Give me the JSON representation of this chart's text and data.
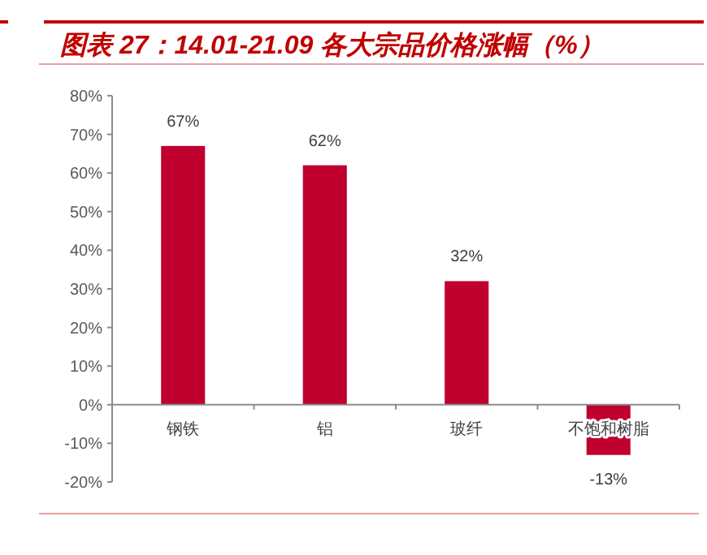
{
  "chart_data": {
    "type": "bar",
    "title": "图表 27：14.01-21.09 各大宗品价格涨幅（%）",
    "categories": [
      "钢铁",
      "铝",
      "玻纤",
      "不饱和树脂"
    ],
    "values": [
      67,
      62,
      32,
      -13
    ],
    "value_labels": [
      "67%",
      "62%",
      "32%",
      "-13%"
    ],
    "color": "#c0002f",
    "ylim": [
      -20,
      80
    ],
    "yticks": [
      {
        "value": -20,
        "label": "-20%"
      },
      {
        "value": -10,
        "label": "-10%"
      },
      {
        "value": 0,
        "label": "0%"
      },
      {
        "value": 10,
        "label": "10%"
      },
      {
        "value": 20,
        "label": "20%"
      },
      {
        "value": 30,
        "label": "30%"
      },
      {
        "value": 40,
        "label": "40%"
      },
      {
        "value": 50,
        "label": "50%"
      },
      {
        "value": 60,
        "label": "60%"
      },
      {
        "value": 70,
        "label": "70%"
      },
      {
        "value": 80,
        "label": "80%"
      }
    ],
    "grid": false
  }
}
